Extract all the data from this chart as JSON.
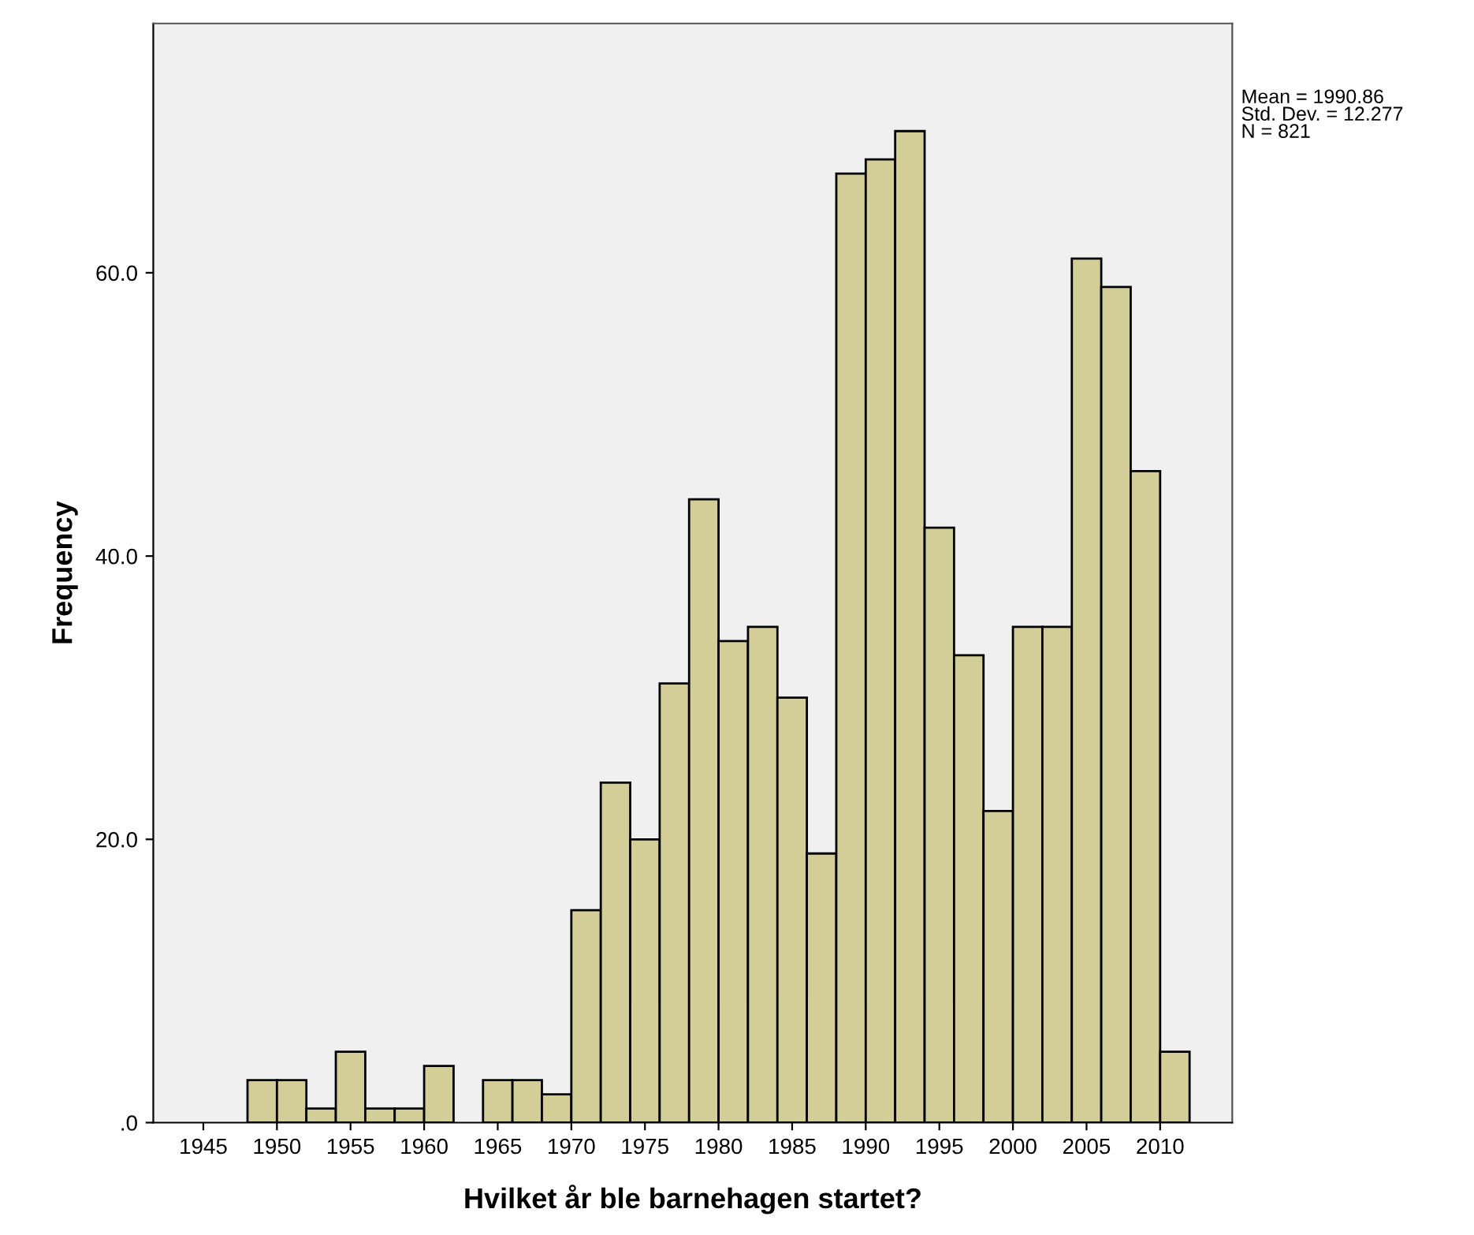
{
  "chart_data": {
    "type": "histogram",
    "xlabel": "Hvilket år ble barnehagen startet?",
    "ylabel": "Frequency",
    "bins": [
      1948,
      1950,
      1952,
      1954,
      1956,
      1958,
      1960,
      1962,
      1964,
      1966,
      1968,
      1970,
      1972,
      1974,
      1976,
      1978,
      1980,
      1982,
      1984,
      1986,
      1988,
      1990,
      1992,
      1994,
      1996,
      1998,
      2000,
      2002,
      2004,
      2006,
      2008,
      2010,
      2012
    ],
    "values": [
      3,
      3,
      1,
      5,
      1,
      1,
      4,
      0,
      3,
      3,
      2,
      15,
      24,
      20,
      31,
      44,
      34,
      35,
      30,
      19,
      67,
      68,
      70,
      42,
      33,
      22,
      35,
      35,
      61,
      59,
      46,
      5
    ],
    "color": "#d3ce97",
    "xlim": [
      1941.6,
      2014.9
    ],
    "xticks": [
      1945,
      1950,
      1955,
      1960,
      1965,
      1970,
      1975,
      1980,
      1985,
      1990,
      1995,
      2000,
      2005,
      2010
    ],
    "ylim": [
      0,
      77.6
    ],
    "yticks": [
      {
        "value": 0,
        "label": ".0"
      },
      {
        "value": 20,
        "label": "20.0"
      },
      {
        "value": 40,
        "label": "40.0"
      },
      {
        "value": 60,
        "label": "60.0"
      }
    ],
    "grid": false,
    "annotations": [
      "Mean = 1990.86",
      "Std. Dev. = 12.277",
      "N = 821"
    ]
  }
}
